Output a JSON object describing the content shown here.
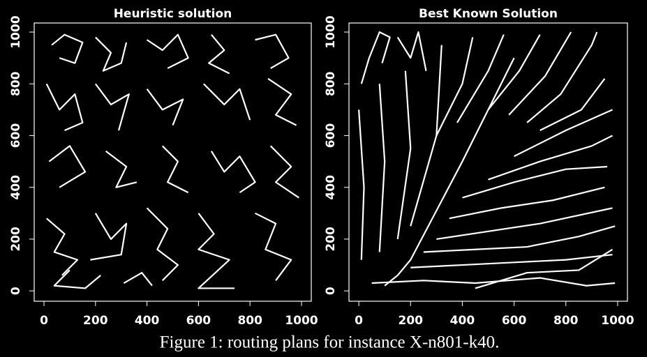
{
  "chart_data": [
    {
      "type": "line",
      "title": "Heuristic solution",
      "color": "#ffffff",
      "xlim": [
        -38,
        1038
      ],
      "ylim": [
        -40,
        1035
      ],
      "xticks": [
        0,
        200,
        400,
        600,
        800,
        1000
      ],
      "yticks": [
        0,
        200,
        400,
        600,
        800,
        1000
      ],
      "series": [
        {
          "x": [
            30,
            80,
            150,
            120,
            60
          ],
          "values": [
            950,
            990,
            960,
            880,
            900
          ]
        },
        {
          "x": [
            200,
            260,
            230,
            300,
            320
          ],
          "values": [
            980,
            920,
            850,
            880,
            960
          ]
        },
        {
          "x": [
            400,
            460,
            520,
            560,
            480
          ],
          "values": [
            970,
            930,
            990,
            900,
            860
          ]
        },
        {
          "x": [
            650,
            700,
            640,
            720
          ],
          "values": [
            990,
            930,
            880,
            840
          ]
        },
        {
          "x": [
            820,
            900,
            950,
            880
          ],
          "values": [
            970,
            990,
            900,
            860
          ]
        },
        {
          "x": [
            10,
            60,
            120,
            150,
            80
          ],
          "values": [
            800,
            700,
            760,
            650,
            620
          ]
        },
        {
          "x": [
            200,
            260,
            330,
            290
          ],
          "values": [
            800,
            720,
            760,
            620
          ]
        },
        {
          "x": [
            400,
            460,
            540,
            500
          ],
          "values": [
            780,
            700,
            740,
            640
          ]
        },
        {
          "x": [
            620,
            700,
            760,
            800
          ],
          "values": [
            800,
            720,
            780,
            660
          ]
        },
        {
          "x": [
            870,
            960,
            900,
            980
          ],
          "values": [
            820,
            760,
            680,
            640
          ]
        },
        {
          "x": [
            20,
            100,
            160,
            60
          ],
          "values": [
            500,
            560,
            460,
            400
          ]
        },
        {
          "x": [
            240,
            320,
            280,
            360
          ],
          "values": [
            540,
            480,
            400,
            420
          ]
        },
        {
          "x": [
            460,
            520,
            480,
            560
          ],
          "values": [
            560,
            500,
            420,
            380
          ]
        },
        {
          "x": [
            650,
            700,
            760,
            820,
            760
          ],
          "values": [
            540,
            460,
            520,
            420,
            380
          ]
        },
        {
          "x": [
            880,
            960,
            900,
            990
          ],
          "values": [
            560,
            480,
            420,
            360
          ]
        },
        {
          "x": [
            10,
            80,
            40,
            130,
            70
          ],
          "values": [
            280,
            220,
            150,
            120,
            60
          ]
        },
        {
          "x": [
            200,
            260,
            320,
            300,
            180
          ],
          "values": [
            300,
            200,
            260,
            140,
            120
          ]
        },
        {
          "x": [
            400,
            480,
            440,
            520,
            460
          ],
          "values": [
            320,
            240,
            160,
            100,
            40
          ]
        },
        {
          "x": [
            600,
            660,
            600,
            720,
            600,
            740
          ],
          "values": [
            300,
            220,
            160,
            120,
            10,
            10
          ]
        },
        {
          "x": [
            820,
            900,
            860,
            960,
            900
          ],
          "values": [
            300,
            260,
            160,
            120,
            40
          ]
        },
        {
          "x": [
            100,
            40,
            160,
            220
          ],
          "values": [
            80,
            20,
            10,
            60
          ]
        },
        {
          "x": [
            310,
            380,
            420
          ],
          "values": [
            30,
            70,
            20
          ]
        }
      ]
    },
    {
      "type": "line",
      "title": "Best Known Solution",
      "color": "#ffffff",
      "xlim": [
        -38,
        1038
      ],
      "ylim": [
        -40,
        1035
      ],
      "xticks": [
        0,
        200,
        400,
        600,
        800,
        1000
      ],
      "yticks": [
        0,
        200,
        400,
        600,
        800,
        1000
      ],
      "series": [
        {
          "x": [
            10,
            40,
            80,
            120,
            90
          ],
          "values": [
            800,
            900,
            1000,
            980,
            880
          ]
        },
        {
          "x": [
            150,
            200,
            230,
            260
          ],
          "values": [
            980,
            900,
            1000,
            850
          ]
        },
        {
          "x": [
            300,
            400,
            440
          ],
          "values": [
            600,
            800,
            980
          ]
        },
        {
          "x": [
            380,
            500,
            560
          ],
          "values": [
            650,
            850,
            990
          ]
        },
        {
          "x": [
            500,
            620,
            700
          ],
          "values": [
            700,
            850,
            990
          ]
        },
        {
          "x": [
            580,
            720,
            820
          ],
          "values": [
            680,
            830,
            1000
          ]
        },
        {
          "x": [
            650,
            780,
            900,
            920
          ],
          "values": [
            650,
            760,
            950,
            1000
          ]
        },
        {
          "x": [
            700,
            860,
            950
          ],
          "values": [
            620,
            700,
            820
          ]
        },
        {
          "x": [
            600,
            800,
            980
          ],
          "values": [
            520,
            620,
            700
          ]
        },
        {
          "x": [
            500,
            700,
            900,
            980
          ],
          "values": [
            430,
            500,
            560,
            600
          ]
        },
        {
          "x": [
            400,
            600,
            800,
            960
          ],
          "values": [
            360,
            420,
            470,
            480
          ]
        },
        {
          "x": [
            350,
            550,
            750,
            950
          ],
          "values": [
            280,
            320,
            350,
            400
          ]
        },
        {
          "x": [
            300,
            500,
            700,
            980
          ],
          "values": [
            200,
            230,
            260,
            320
          ]
        },
        {
          "x": [
            250,
            450,
            650,
            850,
            990
          ],
          "values": [
            150,
            160,
            170,
            210,
            250
          ]
        },
        {
          "x": [
            200,
            400,
            600,
            800,
            980
          ],
          "values": [
            90,
            100,
            110,
            120,
            140
          ]
        },
        {
          "x": [
            50,
            250,
            450,
            700,
            880,
            990
          ],
          "values": [
            30,
            40,
            30,
            50,
            20,
            30
          ]
        },
        {
          "x": [
            10,
            20,
            0
          ],
          "values": [
            120,
            400,
            700
          ]
        },
        {
          "x": [
            80,
            100,
            80
          ],
          "values": [
            150,
            500,
            800
          ]
        },
        {
          "x": [
            150,
            200,
            180
          ],
          "values": [
            200,
            550,
            850
          ]
        },
        {
          "x": [
            200,
            300,
            320
          ],
          "values": [
            250,
            600,
            950
          ]
        },
        {
          "x": [
            100,
            150,
            200,
            400,
            600
          ],
          "values": [
            20,
            60,
            120,
            500,
            900
          ]
        },
        {
          "x": [
            450,
            650,
            850,
            980
          ],
          "values": [
            10,
            70,
            80,
            160
          ]
        }
      ]
    }
  ],
  "caption": "Figure 1: routing plans for instance X-n801-k40."
}
